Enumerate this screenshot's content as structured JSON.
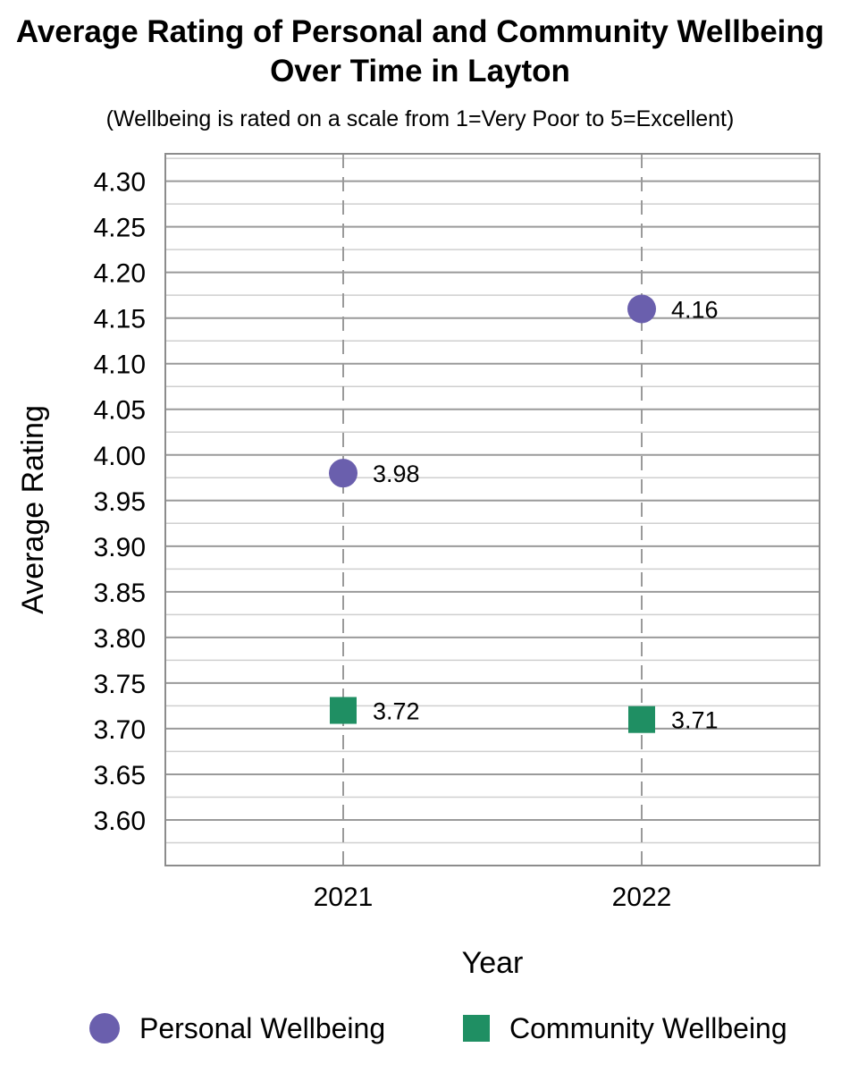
{
  "chart_data": {
    "type": "scatter",
    "title_line1": "Average Rating of Personal and Community Wellbeing",
    "title_line2": "Over Time in Layton",
    "subtitle": "(Wellbeing is rated on a scale from 1=Very Poor to 5=Excellent)",
    "xlabel": "Year",
    "ylabel": "Average Rating",
    "categories": [
      "2021",
      "2022"
    ],
    "ylim": [
      3.55,
      4.33
    ],
    "yticks": [
      "3.60",
      "3.65",
      "3.70",
      "3.75",
      "3.80",
      "3.85",
      "3.90",
      "3.95",
      "4.00",
      "4.05",
      "4.10",
      "4.15",
      "4.20",
      "4.25",
      "4.30"
    ],
    "grid": true,
    "legend_position": "bottom",
    "series": [
      {
        "name": "Personal Wellbeing",
        "marker": "circle",
        "color": "#6a5fad",
        "values": [
          3.98,
          4.16
        ],
        "labels": [
          "3.98",
          "4.16"
        ]
      },
      {
        "name": "Community Wellbeing",
        "marker": "square",
        "color": "#1f8f63",
        "values": [
          3.72,
          3.71
        ],
        "labels": [
          "3.72",
          "3.71"
        ]
      }
    ]
  }
}
